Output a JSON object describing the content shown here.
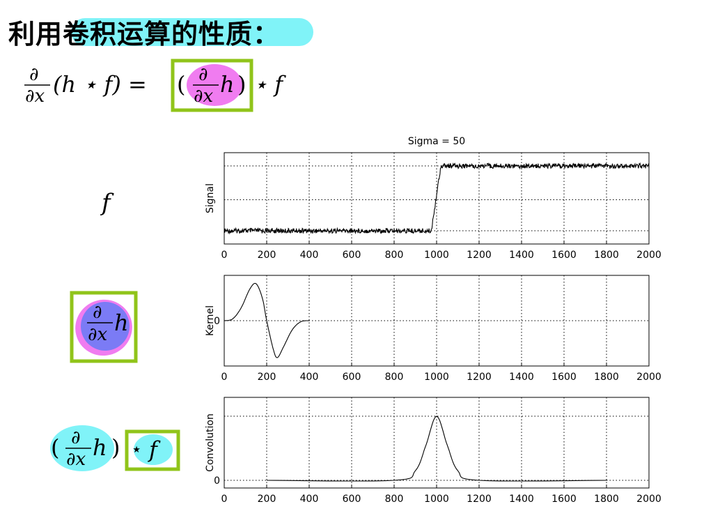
{
  "title": {
    "prefix": "利用",
    "highlight": "卷积运算的性质",
    "suffix": "："
  },
  "formula": {
    "partial_num": "∂",
    "partial_den": "∂x",
    "lhs_rest": "(h ⋆ f) =",
    "rhs_open": "(",
    "rhs_h": "h",
    "rhs_close": ")",
    "rhs_star_f": "⋆ f"
  },
  "row_labels": {
    "f_label": "f",
    "dh_num": "∂",
    "dh_den": "∂x",
    "dh_h": "h",
    "conv_open": "(",
    "conv_num": "∂",
    "conv_den": "∂x",
    "conv_h": "h",
    "conv_close": ")",
    "conv_star": "⋆",
    "conv_f": "f"
  },
  "colors": {
    "cyan_highlight": "#80f3f8",
    "magenta_highlight": "#f07cf0",
    "blue_highlight": "#7b7bf5",
    "green_box": "#90c41a"
  },
  "chart_data": [
    {
      "type": "line",
      "title": "Sigma = 50",
      "ylabel": "Signal",
      "xlim": [
        0,
        2000
      ],
      "xticks": [
        0,
        200,
        400,
        600,
        800,
        1000,
        1200,
        1400,
        1600,
        1800,
        2000
      ],
      "grid": true,
      "series": [
        {
          "x": [
            0,
            975,
            1020,
            2000
          ],
          "y": [
            0,
            0,
            1,
            1
          ]
        }
      ]
    },
    {
      "type": "line",
      "ylabel": "Kernel",
      "yticks": [
        "0"
      ],
      "xlim": [
        0,
        2000
      ],
      "xticks": [
        0,
        200,
        400,
        600,
        800,
        1000,
        1200,
        1400,
        1600,
        1800,
        2000
      ],
      "grid": true,
      "series": [
        {
          "x": [
            0,
            40,
            80,
            120,
            150,
            180,
            200,
            230,
            250,
            280,
            320,
            360,
            400
          ],
          "y": [
            0,
            0.05,
            0.35,
            0.85,
            1.0,
            0.6,
            0,
            -0.75,
            -1.0,
            -0.7,
            -0.25,
            -0.03,
            0
          ]
        }
      ]
    },
    {
      "type": "line",
      "ylabel": "Convolution",
      "yticks": [
        "0"
      ],
      "xlim": [
        0,
        2000
      ],
      "xticks": [
        0,
        200,
        400,
        600,
        800,
        1000,
        1200,
        1400,
        1600,
        1800,
        2000
      ],
      "grid": true,
      "series": [
        {
          "x": [
            200,
            800,
            900,
            950,
            1000,
            1050,
            1100,
            1200,
            1800
          ],
          "y": [
            0,
            0,
            0.15,
            0.55,
            1.0,
            0.55,
            0.15,
            0,
            0
          ]
        }
      ]
    }
  ]
}
